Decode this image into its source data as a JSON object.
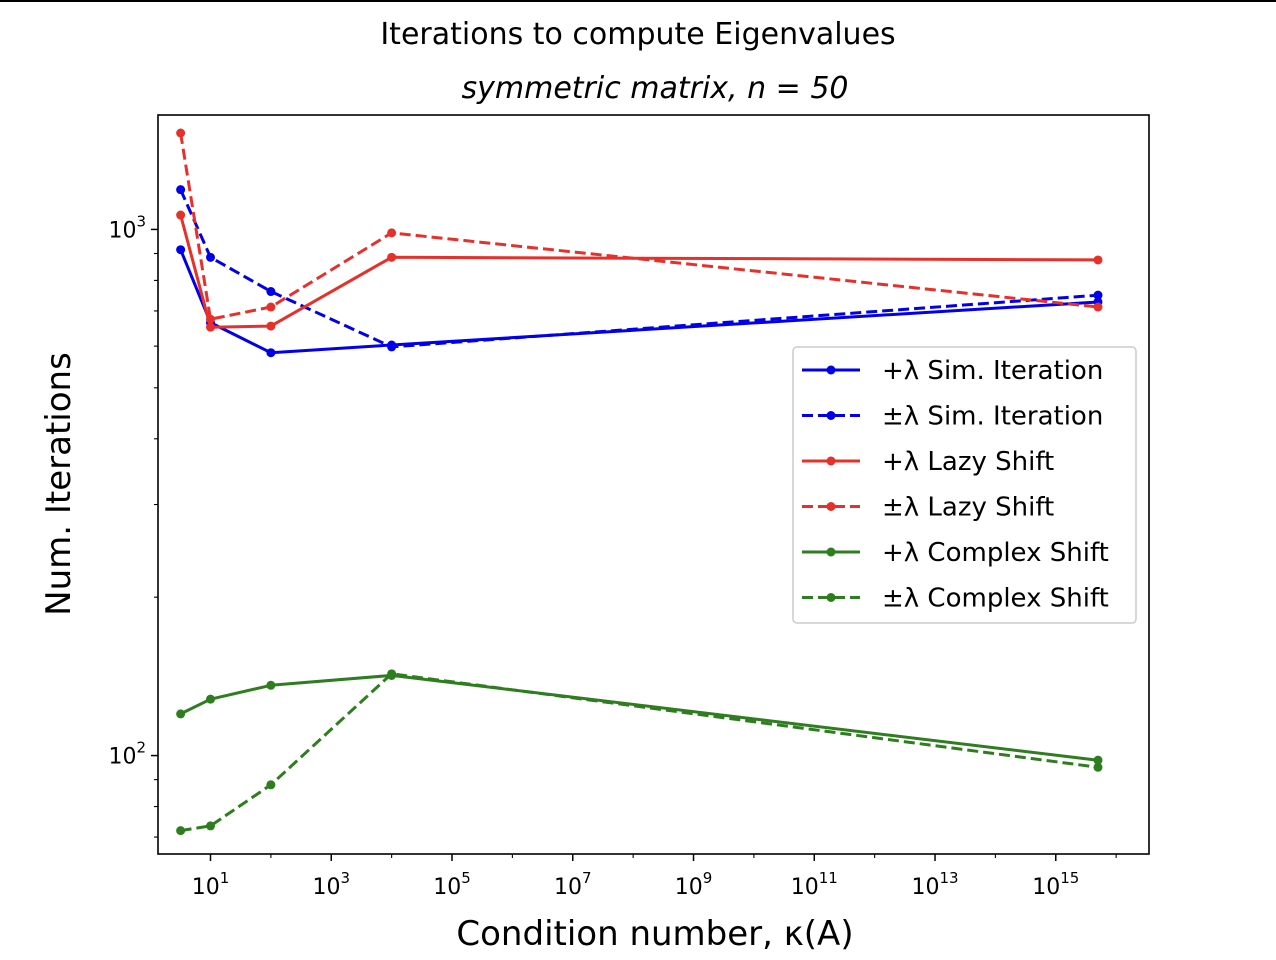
{
  "chart_data": {
    "type": "line",
    "title": "Iterations to compute Eigenvalues",
    "subtitle": "symmetric matrix, n = 50",
    "xlabel": "Condition number, κ(A)",
    "ylabel": "Num. Iterations",
    "xscale": "log",
    "yscale": "log",
    "xlim": [
      1.35,
      3.5e+16
    ],
    "ylim": [
      65,
      1650
    ],
    "x_ticks": [
      {
        "base": "10",
        "exp": "1",
        "value": 10
      },
      {
        "base": "10",
        "exp": "3",
        "value": 1000
      },
      {
        "base": "10",
        "exp": "5",
        "value": 100000
      },
      {
        "base": "10",
        "exp": "7",
        "value": 10000000
      },
      {
        "base": "10",
        "exp": "9",
        "value": 1000000000
      },
      {
        "base": "10",
        "exp": "11",
        "value": 100000000000
      },
      {
        "base": "10",
        "exp": "13",
        "value": 10000000000000
      },
      {
        "base": "10",
        "exp": "15",
        "value": 1000000000000000
      }
    ],
    "y_ticks": [
      {
        "base": "10",
        "exp": "2",
        "value": 100
      },
      {
        "base": "10",
        "exp": "3",
        "value": 1000
      }
    ],
    "grid": false,
    "legend_position": "center-right",
    "series": [
      {
        "name": "+λ Sim. Iteration",
        "color": "#0000ee",
        "dash": "solid",
        "x": [
          3.2,
          10,
          100,
          10000,
          5000000000000000.0
        ],
        "y": [
          915,
          665,
          583,
          603,
          728
        ]
      },
      {
        "name": "±λ Sim. Iteration",
        "color": "#0000ee",
        "dash": "dashed",
        "x": [
          3.2,
          10,
          100,
          10000,
          5000000000000000.0
        ],
        "y": [
          1190,
          885,
          762,
          598,
          750
        ]
      },
      {
        "name": "+λ Lazy Shift",
        "color": "#e8302a",
        "dash": "solid",
        "x": [
          3.2,
          10,
          100,
          10000,
          5000000000000000.0
        ],
        "y": [
          1065,
          652,
          655,
          885,
          875
        ]
      },
      {
        "name": "±λ Lazy Shift",
        "color": "#e8302a",
        "dash": "dashed",
        "x": [
          3.2,
          10,
          100,
          10000,
          5000000000000000.0
        ],
        "y": [
          1525,
          675,
          712,
          985,
          712
        ]
      },
      {
        "name": "+λ Complex Shift",
        "color": "#2e7d1f",
        "dash": "solid",
        "x": [
          3.2,
          10,
          100,
          10000,
          5000000000000000.0
        ],
        "y": [
          120,
          128,
          136,
          142,
          98
        ]
      },
      {
        "name": "±λ Complex Shift",
        "color": "#2e7d1f",
        "dash": "dashed",
        "x": [
          3.2,
          10,
          100,
          10000,
          5000000000000000.0
        ],
        "y": [
          72,
          73.5,
          88,
          143,
          95
        ]
      }
    ]
  }
}
